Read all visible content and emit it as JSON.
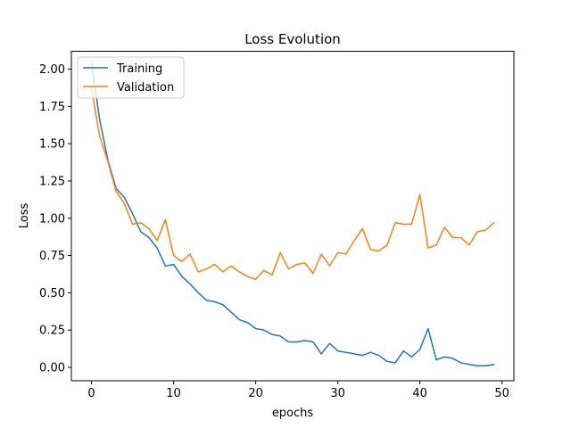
{
  "chart_data": {
    "type": "line",
    "title": "Loss Evolution",
    "xlabel": "epochs",
    "ylabel": "Loss",
    "xlim": [
      -2.45,
      51.45
    ],
    "ylim": [
      -0.09,
      2.12
    ],
    "xticks": [
      0,
      10,
      20,
      30,
      40,
      50
    ],
    "yticks": [
      "0.00",
      "0.25",
      "0.50",
      "0.75",
      "1.00",
      "1.25",
      "1.50",
      "1.75",
      "2.00"
    ],
    "grid": false,
    "legend_position": "top-left",
    "x": [
      0,
      1,
      2,
      3,
      4,
      5,
      6,
      7,
      8,
      9,
      10,
      11,
      12,
      13,
      14,
      15,
      16,
      17,
      18,
      19,
      20,
      21,
      22,
      23,
      24,
      25,
      26,
      27,
      28,
      29,
      30,
      31,
      32,
      33,
      34,
      35,
      36,
      37,
      38,
      39,
      40,
      41,
      42,
      43,
      44,
      45,
      46,
      47,
      48,
      49
    ],
    "series": [
      {
        "name": "Training",
        "color": "#1f77b4",
        "values": [
          2.04,
          1.66,
          1.39,
          1.2,
          1.14,
          1.03,
          0.91,
          0.87,
          0.8,
          0.68,
          0.69,
          0.61,
          0.56,
          0.5,
          0.45,
          0.44,
          0.42,
          0.37,
          0.32,
          0.3,
          0.26,
          0.25,
          0.22,
          0.21,
          0.17,
          0.17,
          0.18,
          0.17,
          0.09,
          0.16,
          0.11,
          0.1,
          0.09,
          0.08,
          0.1,
          0.08,
          0.04,
          0.03,
          0.11,
          0.07,
          0.12,
          0.26,
          0.05,
          0.07,
          0.06,
          0.03,
          0.02,
          0.01,
          0.01,
          0.02
        ]
      },
      {
        "name": "Validation",
        "color": "#ff7f0e",
        "values": [
          1.87,
          1.55,
          1.38,
          1.18,
          1.1,
          0.96,
          0.97,
          0.93,
          0.85,
          0.99,
          0.75,
          0.71,
          0.76,
          0.64,
          0.66,
          0.69,
          0.64,
          0.68,
          0.64,
          0.61,
          0.59,
          0.65,
          0.62,
          0.77,
          0.66,
          0.69,
          0.7,
          0.63,
          0.76,
          0.68,
          0.77,
          0.76,
          0.85,
          0.93,
          0.79,
          0.78,
          0.82,
          0.97,
          0.96,
          0.96,
          1.16,
          0.8,
          0.82,
          0.94,
          0.87,
          0.87,
          0.82,
          0.91,
          0.92,
          0.97
        ]
      }
    ]
  }
}
